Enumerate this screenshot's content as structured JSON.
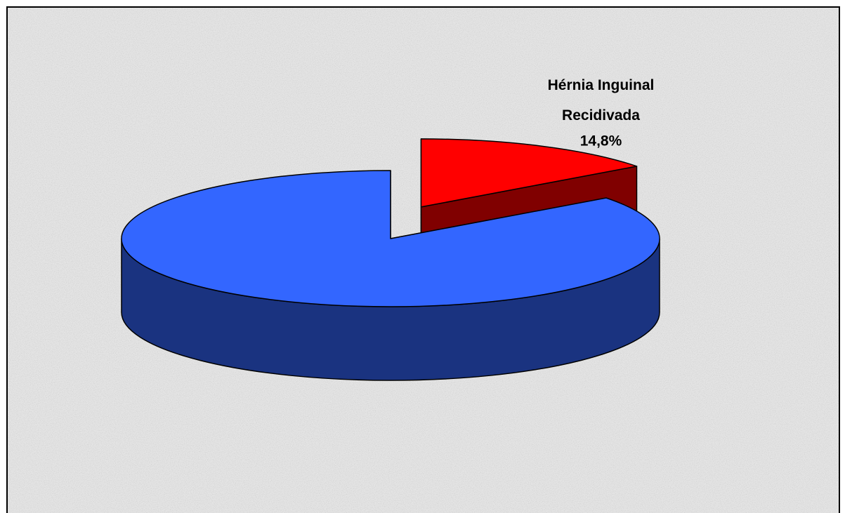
{
  "chart_data": {
    "type": "pie",
    "categories": [
      "Hérnia Inguinal Recidivada",
      null
    ],
    "values": [
      14.8,
      85.2
    ],
    "value_labels": [
      "14,8%",
      null
    ],
    "colors": [
      "#ff0000",
      "#3366ff"
    ],
    "side_colors": [
      "#800000",
      "#1a3380"
    ],
    "exploded": [
      true,
      false
    ],
    "three_d": true
  }
}
